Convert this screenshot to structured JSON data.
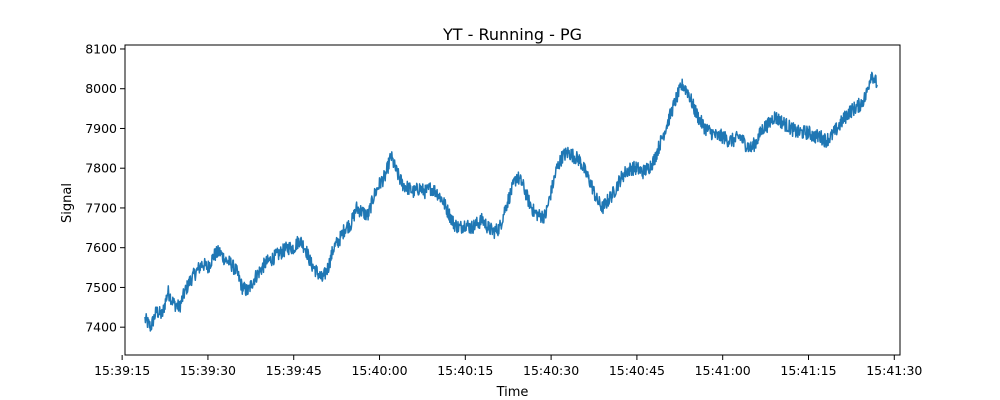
{
  "chart_data": {
    "type": "line",
    "title": "YT - Running - PG",
    "xlabel": "Time",
    "ylabel": "Signal",
    "x_start": "15:39:19",
    "x_end": "15:41:27",
    "xlim": [
      "15:39:15.5",
      "15:41:31"
    ],
    "ylim": [
      7330,
      8110
    ],
    "x_ticks": [
      "15:39:15",
      "15:39:30",
      "15:39:45",
      "15:40:00",
      "15:40:15",
      "15:40:30",
      "15:40:45",
      "15:41:00",
      "15:41:15",
      "15:41:30"
    ],
    "y_ticks": [
      7400,
      7500,
      7600,
      7700,
      7800,
      7900,
      8000,
      8100
    ],
    "grid": false,
    "legend": "none",
    "series": [
      {
        "color": "#1f77b4",
        "points": [
          [
            "15:39:19",
            7420
          ],
          [
            "15:39:20",
            7400
          ],
          [
            "15:39:21",
            7440
          ],
          [
            "15:39:22",
            7430
          ],
          [
            "15:39:23",
            7490
          ],
          [
            "15:39:24",
            7460
          ],
          [
            "15:39:25",
            7450
          ],
          [
            "15:39:26",
            7490
          ],
          [
            "15:39:27",
            7520
          ],
          [
            "15:39:28",
            7540
          ],
          [
            "15:39:29",
            7560
          ],
          [
            "15:39:30",
            7550
          ],
          [
            "15:39:31",
            7580
          ],
          [
            "15:39:32",
            7590
          ],
          [
            "15:39:33",
            7570
          ],
          [
            "15:39:34",
            7560
          ],
          [
            "15:39:35",
            7540
          ],
          [
            "15:39:36",
            7500
          ],
          [
            "15:39:37",
            7490
          ],
          [
            "15:39:38",
            7520
          ],
          [
            "15:39:39",
            7540
          ],
          [
            "15:39:40",
            7560
          ],
          [
            "15:39:41",
            7570
          ],
          [
            "15:39:42",
            7580
          ],
          [
            "15:39:43",
            7590
          ],
          [
            "15:39:44",
            7600
          ],
          [
            "15:39:45",
            7600
          ],
          [
            "15:39:46",
            7620
          ],
          [
            "15:39:47",
            7600
          ],
          [
            "15:39:48",
            7560
          ],
          [
            "15:39:49",
            7540
          ],
          [
            "15:39:50",
            7520
          ],
          [
            "15:39:51",
            7550
          ],
          [
            "15:39:52",
            7600
          ],
          [
            "15:39:53",
            7620
          ],
          [
            "15:39:54",
            7650
          ],
          [
            "15:39:55",
            7660
          ],
          [
            "15:39:56",
            7700
          ],
          [
            "15:39:57",
            7690
          ],
          [
            "15:39:58",
            7680
          ],
          [
            "15:39:59",
            7730
          ],
          [
            "15:40:00",
            7760
          ],
          [
            "15:40:01",
            7780
          ],
          [
            "15:40:02",
            7830
          ],
          [
            "15:40:03",
            7790
          ],
          [
            "15:40:04",
            7760
          ],
          [
            "15:40:05",
            7750
          ],
          [
            "15:40:06",
            7740
          ],
          [
            "15:40:07",
            7750
          ],
          [
            "15:40:08",
            7740
          ],
          [
            "15:40:09",
            7750
          ],
          [
            "15:40:10",
            7740
          ],
          [
            "15:40:11",
            7720
          ],
          [
            "15:40:12",
            7690
          ],
          [
            "15:40:13",
            7660
          ],
          [
            "15:40:14",
            7650
          ],
          [
            "15:40:15",
            7660
          ],
          [
            "15:40:16",
            7650
          ],
          [
            "15:40:17",
            7660
          ],
          [
            "15:40:18",
            7670
          ],
          [
            "15:40:19",
            7650
          ],
          [
            "15:40:20",
            7640
          ],
          [
            "15:40:21",
            7650
          ],
          [
            "15:40:22",
            7700
          ],
          [
            "15:40:23",
            7740
          ],
          [
            "15:40:24",
            7780
          ],
          [
            "15:40:25",
            7760
          ],
          [
            "15:40:26",
            7720
          ],
          [
            "15:40:27",
            7690
          ],
          [
            "15:40:28",
            7680
          ],
          [
            "15:40:29",
            7680
          ],
          [
            "15:40:30",
            7740
          ],
          [
            "15:40:31",
            7800
          ],
          [
            "15:40:32",
            7830
          ],
          [
            "15:40:33",
            7840
          ],
          [
            "15:40:34",
            7830
          ],
          [
            "15:40:35",
            7820
          ],
          [
            "15:40:36",
            7790
          ],
          [
            "15:40:37",
            7760
          ],
          [
            "15:40:38",
            7720
          ],
          [
            "15:40:39",
            7700
          ],
          [
            "15:40:40",
            7720
          ],
          [
            "15:40:41",
            7740
          ],
          [
            "15:40:42",
            7770
          ],
          [
            "15:40:43",
            7790
          ],
          [
            "15:40:44",
            7800
          ],
          [
            "15:40:45",
            7800
          ],
          [
            "15:40:46",
            7790
          ],
          [
            "15:40:47",
            7800
          ],
          [
            "15:40:48",
            7820
          ],
          [
            "15:40:49",
            7860
          ],
          [
            "15:40:50",
            7900
          ],
          [
            "15:40:51",
            7940
          ],
          [
            "15:40:52",
            7980
          ],
          [
            "15:40:53",
            8010
          ],
          [
            "15:40:54",
            7990
          ],
          [
            "15:40:55",
            7950
          ],
          [
            "15:40:56",
            7920
          ],
          [
            "15:40:57",
            7900
          ],
          [
            "15:40:58",
            7890
          ],
          [
            "15:40:59",
            7880
          ],
          [
            "15:41:00",
            7880
          ],
          [
            "15:41:01",
            7870
          ],
          [
            "15:41:02",
            7870
          ],
          [
            "15:41:03",
            7880
          ],
          [
            "15:41:04",
            7860
          ],
          [
            "15:41:05",
            7850
          ],
          [
            "15:41:06",
            7870
          ],
          [
            "15:41:07",
            7900
          ],
          [
            "15:41:08",
            7910
          ],
          [
            "15:41:09",
            7930
          ],
          [
            "15:41:10",
            7920
          ],
          [
            "15:41:11",
            7910
          ],
          [
            "15:41:12",
            7900
          ],
          [
            "15:41:13",
            7890
          ],
          [
            "15:41:14",
            7890
          ],
          [
            "15:41:15",
            7890
          ],
          [
            "15:41:16",
            7880
          ],
          [
            "15:41:17",
            7880
          ],
          [
            "15:41:18",
            7870
          ],
          [
            "15:41:19",
            7880
          ],
          [
            "15:41:20",
            7900
          ],
          [
            "15:41:21",
            7920
          ],
          [
            "15:41:22",
            7940
          ],
          [
            "15:41:23",
            7950
          ],
          [
            "15:41:24",
            7960
          ],
          [
            "15:41:25",
            7980
          ],
          [
            "15:41:26",
            8040
          ],
          [
            "15:41:27",
            8010
          ]
        ]
      }
    ]
  }
}
